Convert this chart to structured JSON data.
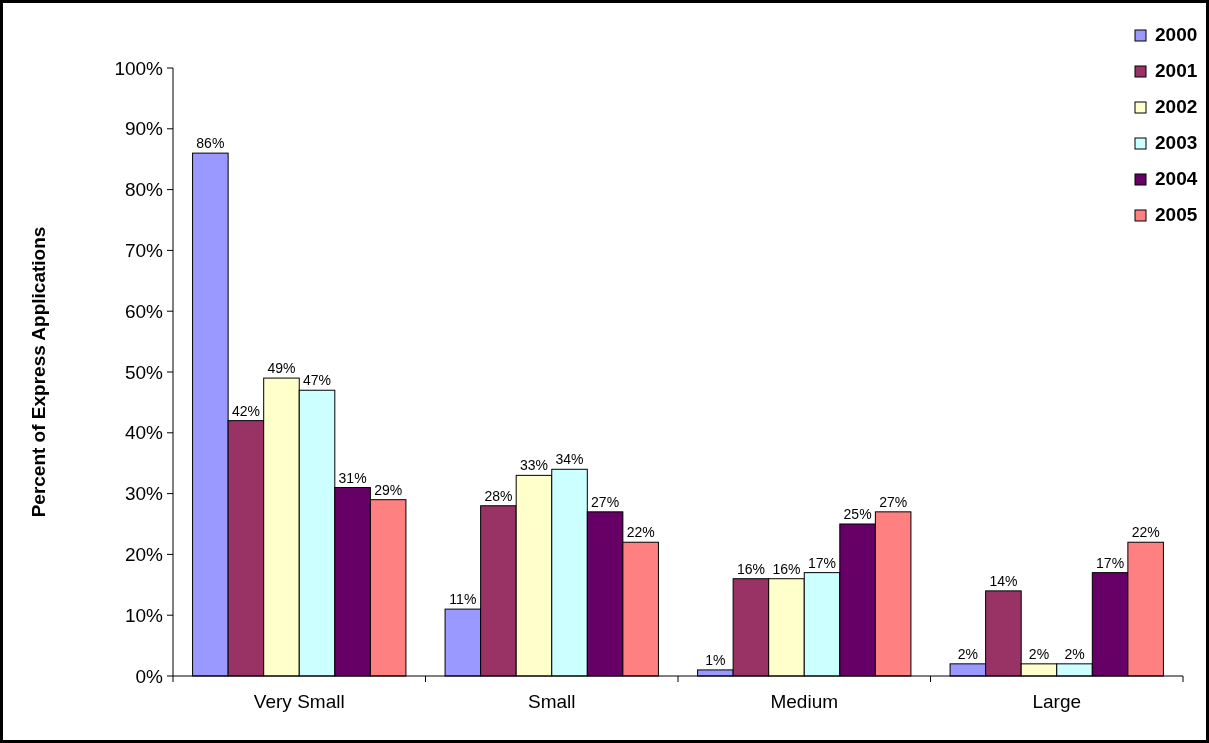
{
  "chart_data": {
    "type": "bar",
    "ylabel": "Percent of Express Applications",
    "categories": [
      "Very Small",
      "Small",
      "Medium",
      "Large"
    ],
    "series": [
      {
        "name": "2000",
        "color": "#9999ff",
        "values": [
          86,
          11,
          1,
          2
        ],
        "value_labels": [
          "86%",
          "11%",
          "1%",
          "2%"
        ]
      },
      {
        "name": "2001",
        "color": "#993366",
        "values": [
          42,
          28,
          16,
          14
        ],
        "value_labels": [
          "42%",
          "28%",
          "16%",
          "14%"
        ]
      },
      {
        "name": "2002",
        "color": "#ffffcc",
        "values": [
          49,
          33,
          16,
          2
        ],
        "value_labels": [
          "49%",
          "33%",
          "16%",
          "2%"
        ]
      },
      {
        "name": "2003",
        "color": "#ccffff",
        "values": [
          47,
          34,
          17,
          2
        ],
        "value_labels": [
          "47%",
          "34%",
          "17%",
          "2%"
        ]
      },
      {
        "name": "2004",
        "color": "#660066",
        "values": [
          31,
          27,
          25,
          17
        ],
        "value_labels": [
          "31%",
          "27%",
          "25%",
          "17%"
        ]
      },
      {
        "name": "2005",
        "color": "#ff8080",
        "values": [
          29,
          22,
          27,
          22
        ],
        "value_labels": [
          "29%",
          "22%",
          "27%",
          "22%"
        ]
      }
    ],
    "ylim": [
      0,
      100
    ],
    "yticks": [
      {
        "value": 0,
        "label": "0%"
      },
      {
        "value": 10,
        "label": "10%"
      },
      {
        "value": 20,
        "label": "20%"
      },
      {
        "value": 30,
        "label": "30%"
      },
      {
        "value": 40,
        "label": "40%"
      },
      {
        "value": 50,
        "label": "50%"
      },
      {
        "value": 60,
        "label": "60%"
      },
      {
        "value": 70,
        "label": "70%"
      },
      {
        "value": 80,
        "label": "80%"
      },
      {
        "value": 90,
        "label": "90%"
      },
      {
        "value": 100,
        "label": "100%"
      }
    ],
    "grid": false,
    "legend": "top right"
  }
}
